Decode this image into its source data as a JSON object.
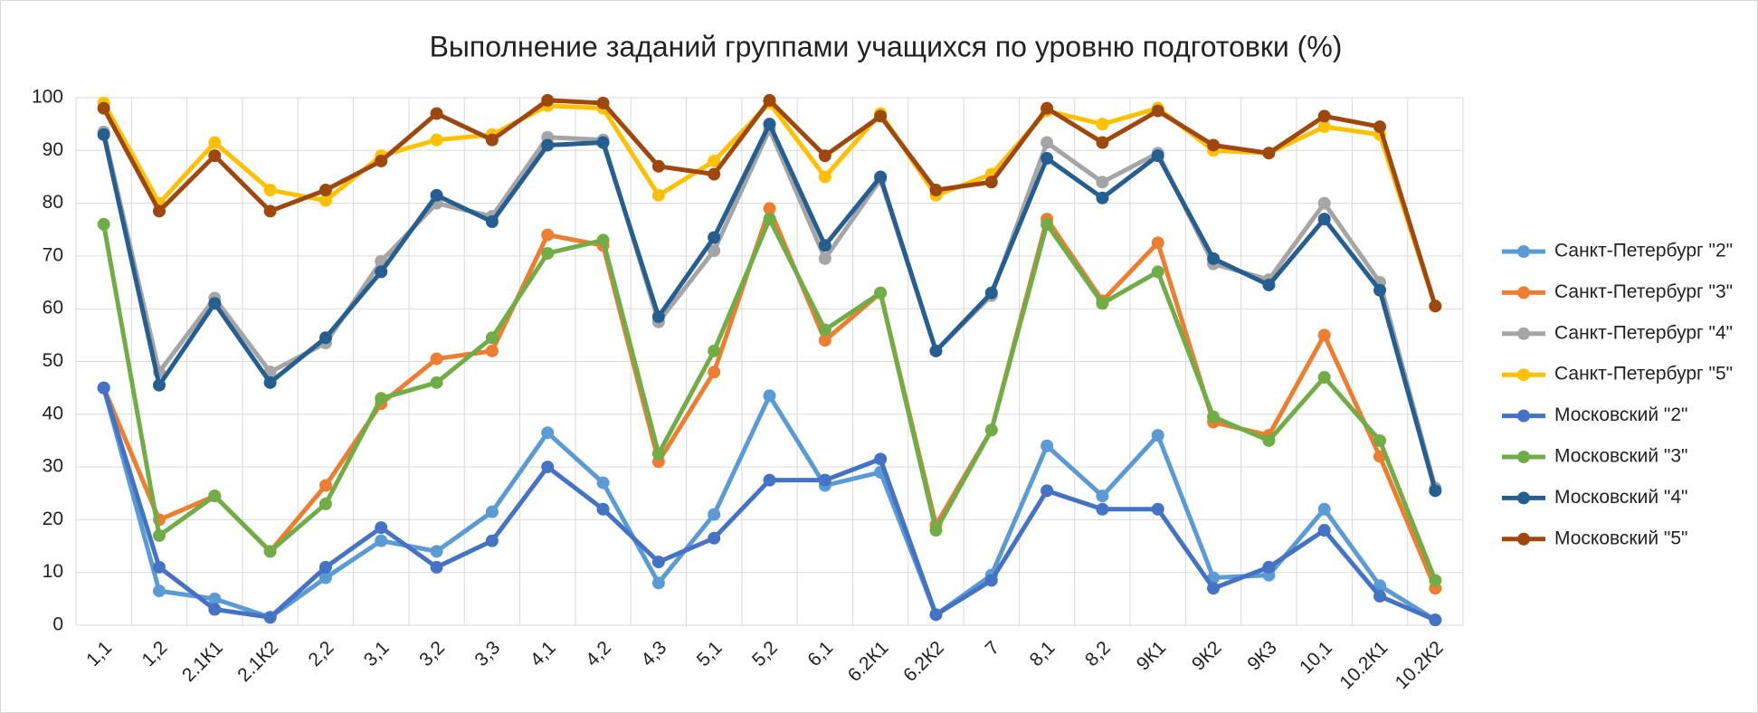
{
  "chart_data": {
    "type": "line",
    "title": "Выполнение заданий группами учащихся по уровню подготовки (%)",
    "categories": [
      "1,1",
      "1,2",
      "2.1К1",
      "2.1К2",
      "2,2",
      "3,1",
      "3,2",
      "3,3",
      "4,1",
      "4,2",
      "4,3",
      "5,1",
      "5,2",
      "6,1",
      "6.2К1",
      "6.2К2",
      "7",
      "8,1",
      "8,2",
      "9К1",
      "9К2",
      "9К3",
      "10,1",
      "10.2К1",
      "10.2К2"
    ],
    "series": [
      {
        "name": "Санкт-Петербург \"2\"",
        "color": "#5b9bd5",
        "values": [
          45,
          6.5,
          5,
          1.5,
          9,
          16,
          14,
          21.5,
          36.5,
          27,
          8,
          21,
          43.5,
          26.5,
          29,
          2,
          9.5,
          34,
          24.5,
          36,
          9,
          9.5,
          22,
          7.5,
          1
        ]
      },
      {
        "name": "Санкт-Петербург \"3\"",
        "color": "#ed7d31",
        "values": [
          45,
          20,
          24.5,
          14,
          26.5,
          42,
          50.5,
          52,
          74,
          72,
          31,
          48,
          79,
          54,
          63,
          19,
          37,
          77,
          61.5,
          72.5,
          38.5,
          36,
          55,
          32,
          7
        ]
      },
      {
        "name": "Санкт-Петербург \"4\"",
        "color": "#a5a5a5",
        "values": [
          93.5,
          48,
          62,
          48,
          53.5,
          69,
          80,
          77.5,
          92.5,
          92,
          57.5,
          71,
          94,
          69.5,
          84.5,
          52,
          62.5,
          91.5,
          84,
          89.5,
          68.5,
          65.5,
          80,
          65,
          26
        ]
      },
      {
        "name": "Санкт-Петербург \"5\"",
        "color": "#ffc000",
        "values": [
          99,
          80,
          91.5,
          82.5,
          80.5,
          89,
          92,
          93,
          98.5,
          98,
          81.5,
          88,
          99,
          85,
          97,
          81.5,
          85.5,
          97.5,
          95,
          98,
          90,
          89.5,
          94.5,
          93,
          60.5
        ]
      },
      {
        "name": "Московский \"2\"",
        "color": "#4472c4",
        "values": [
          45,
          11,
          3,
          1.5,
          11,
          18.5,
          11,
          16,
          30,
          22,
          12,
          16.5,
          27.5,
          27.5,
          31.5,
          2,
          8.5,
          25.5,
          22,
          22,
          7,
          11,
          18,
          5.5,
          1
        ]
      },
      {
        "name": "Московский \"3\"",
        "color": "#70ad47",
        "values": [
          76,
          17,
          24.5,
          14,
          23,
          43,
          46,
          54.5,
          70.5,
          73,
          32.5,
          52,
          77,
          56,
          63,
          18,
          37,
          76,
          61,
          67,
          39.5,
          35,
          47,
          35,
          8.5
        ]
      },
      {
        "name": "Московский \"4\"",
        "color": "#255e91",
        "values": [
          93,
          45.5,
          61,
          46,
          54.5,
          67,
          81.5,
          76.5,
          91,
          91.5,
          58.5,
          73.5,
          95,
          72,
          85,
          52,
          63,
          88.5,
          81,
          89,
          69.5,
          64.5,
          77,
          63.5,
          25.5
        ]
      },
      {
        "name": "Московский \"5\"",
        "color": "#9e480e",
        "values": [
          98,
          78.5,
          89,
          78.5,
          82.5,
          88,
          97,
          92,
          99.5,
          99,
          87,
          85.5,
          99.5,
          89,
          96.5,
          82.5,
          84,
          98,
          91.5,
          97.5,
          91,
          89.5,
          96.5,
          94.5,
          60.5
        ]
      }
    ],
    "ylim": [
      0,
      100
    ],
    "yticks": [
      0,
      10,
      20,
      30,
      40,
      50,
      60,
      70,
      80,
      90,
      100
    ],
    "grid": true,
    "legend": "right"
  }
}
